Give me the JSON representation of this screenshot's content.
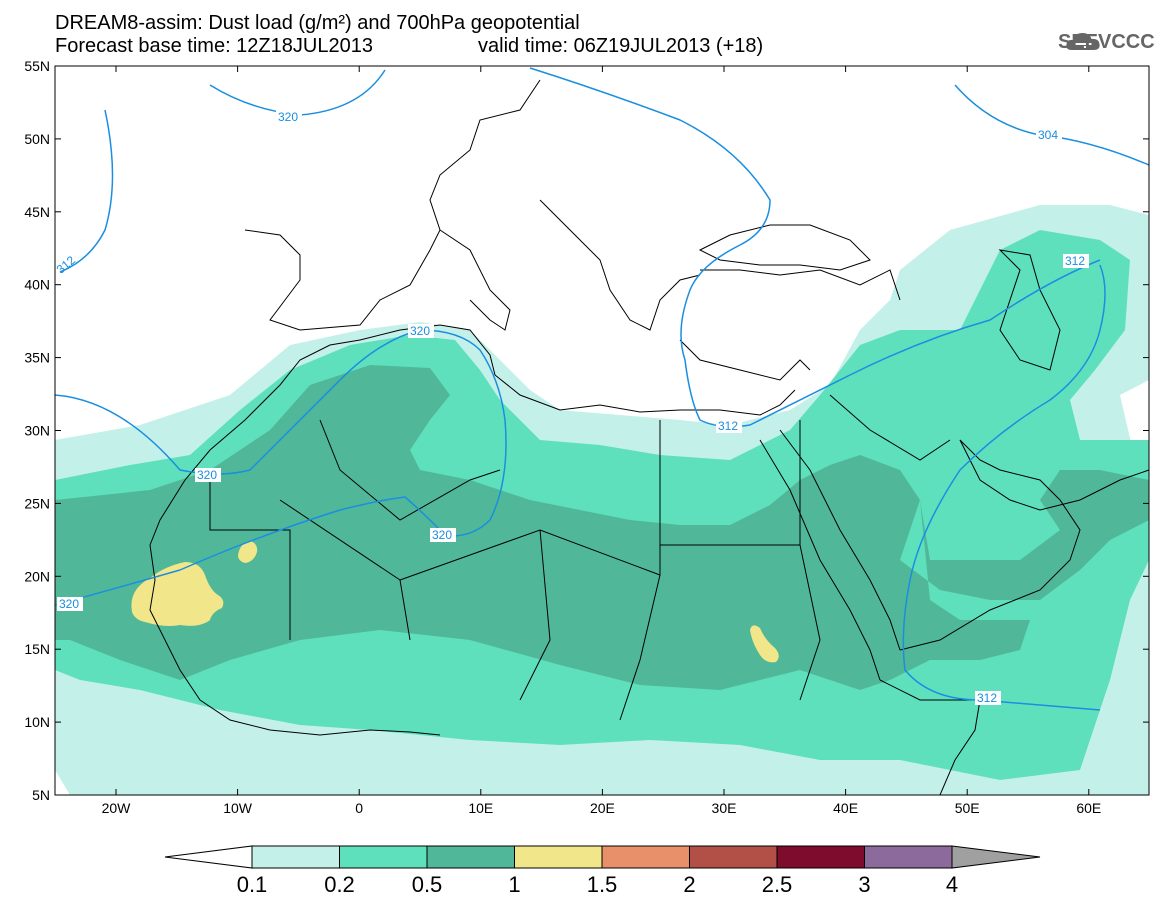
{
  "header": {
    "title_line1": "DREAM8-assim: Dust load (g/m²) and 700hPa geopotential",
    "title_line2": "Forecast base time: 12Z18JUL2013",
    "title_line3": "valid time: 06Z19JUL2013 (+18)"
  },
  "logo": {
    "text": "SEEVCCC",
    "icon": "cloud-logo-icon"
  },
  "axes": {
    "lat_labels": [
      "55N",
      "50N",
      "45N",
      "40N",
      "35N",
      "30N",
      "25N",
      "20N",
      "15N",
      "10N",
      "5N"
    ],
    "lon_labels": [
      "20W",
      "10W",
      "0",
      "10E",
      "20E",
      "30E",
      "40E",
      "50E",
      "60E"
    ]
  },
  "contours": {
    "labels": [
      "320",
      "304",
      "312",
      "312",
      "320",
      "320",
      "320",
      "320",
      "312",
      "312"
    ]
  },
  "colorbar": {
    "labels": [
      "0.1",
      "0.2",
      "0.5",
      "1",
      "1.5",
      "2",
      "2.5",
      "3",
      "4"
    ],
    "colors": [
      "#c4f0ea",
      "#5fe0bc",
      "#50b898",
      "#f2e68a",
      "#e8906a",
      "#b25048",
      "#7e0c2c",
      "#8c6a9c",
      "#a0a0a0"
    ]
  },
  "colors": {
    "contour": "#1a8ee0",
    "border": "#000000"
  }
}
